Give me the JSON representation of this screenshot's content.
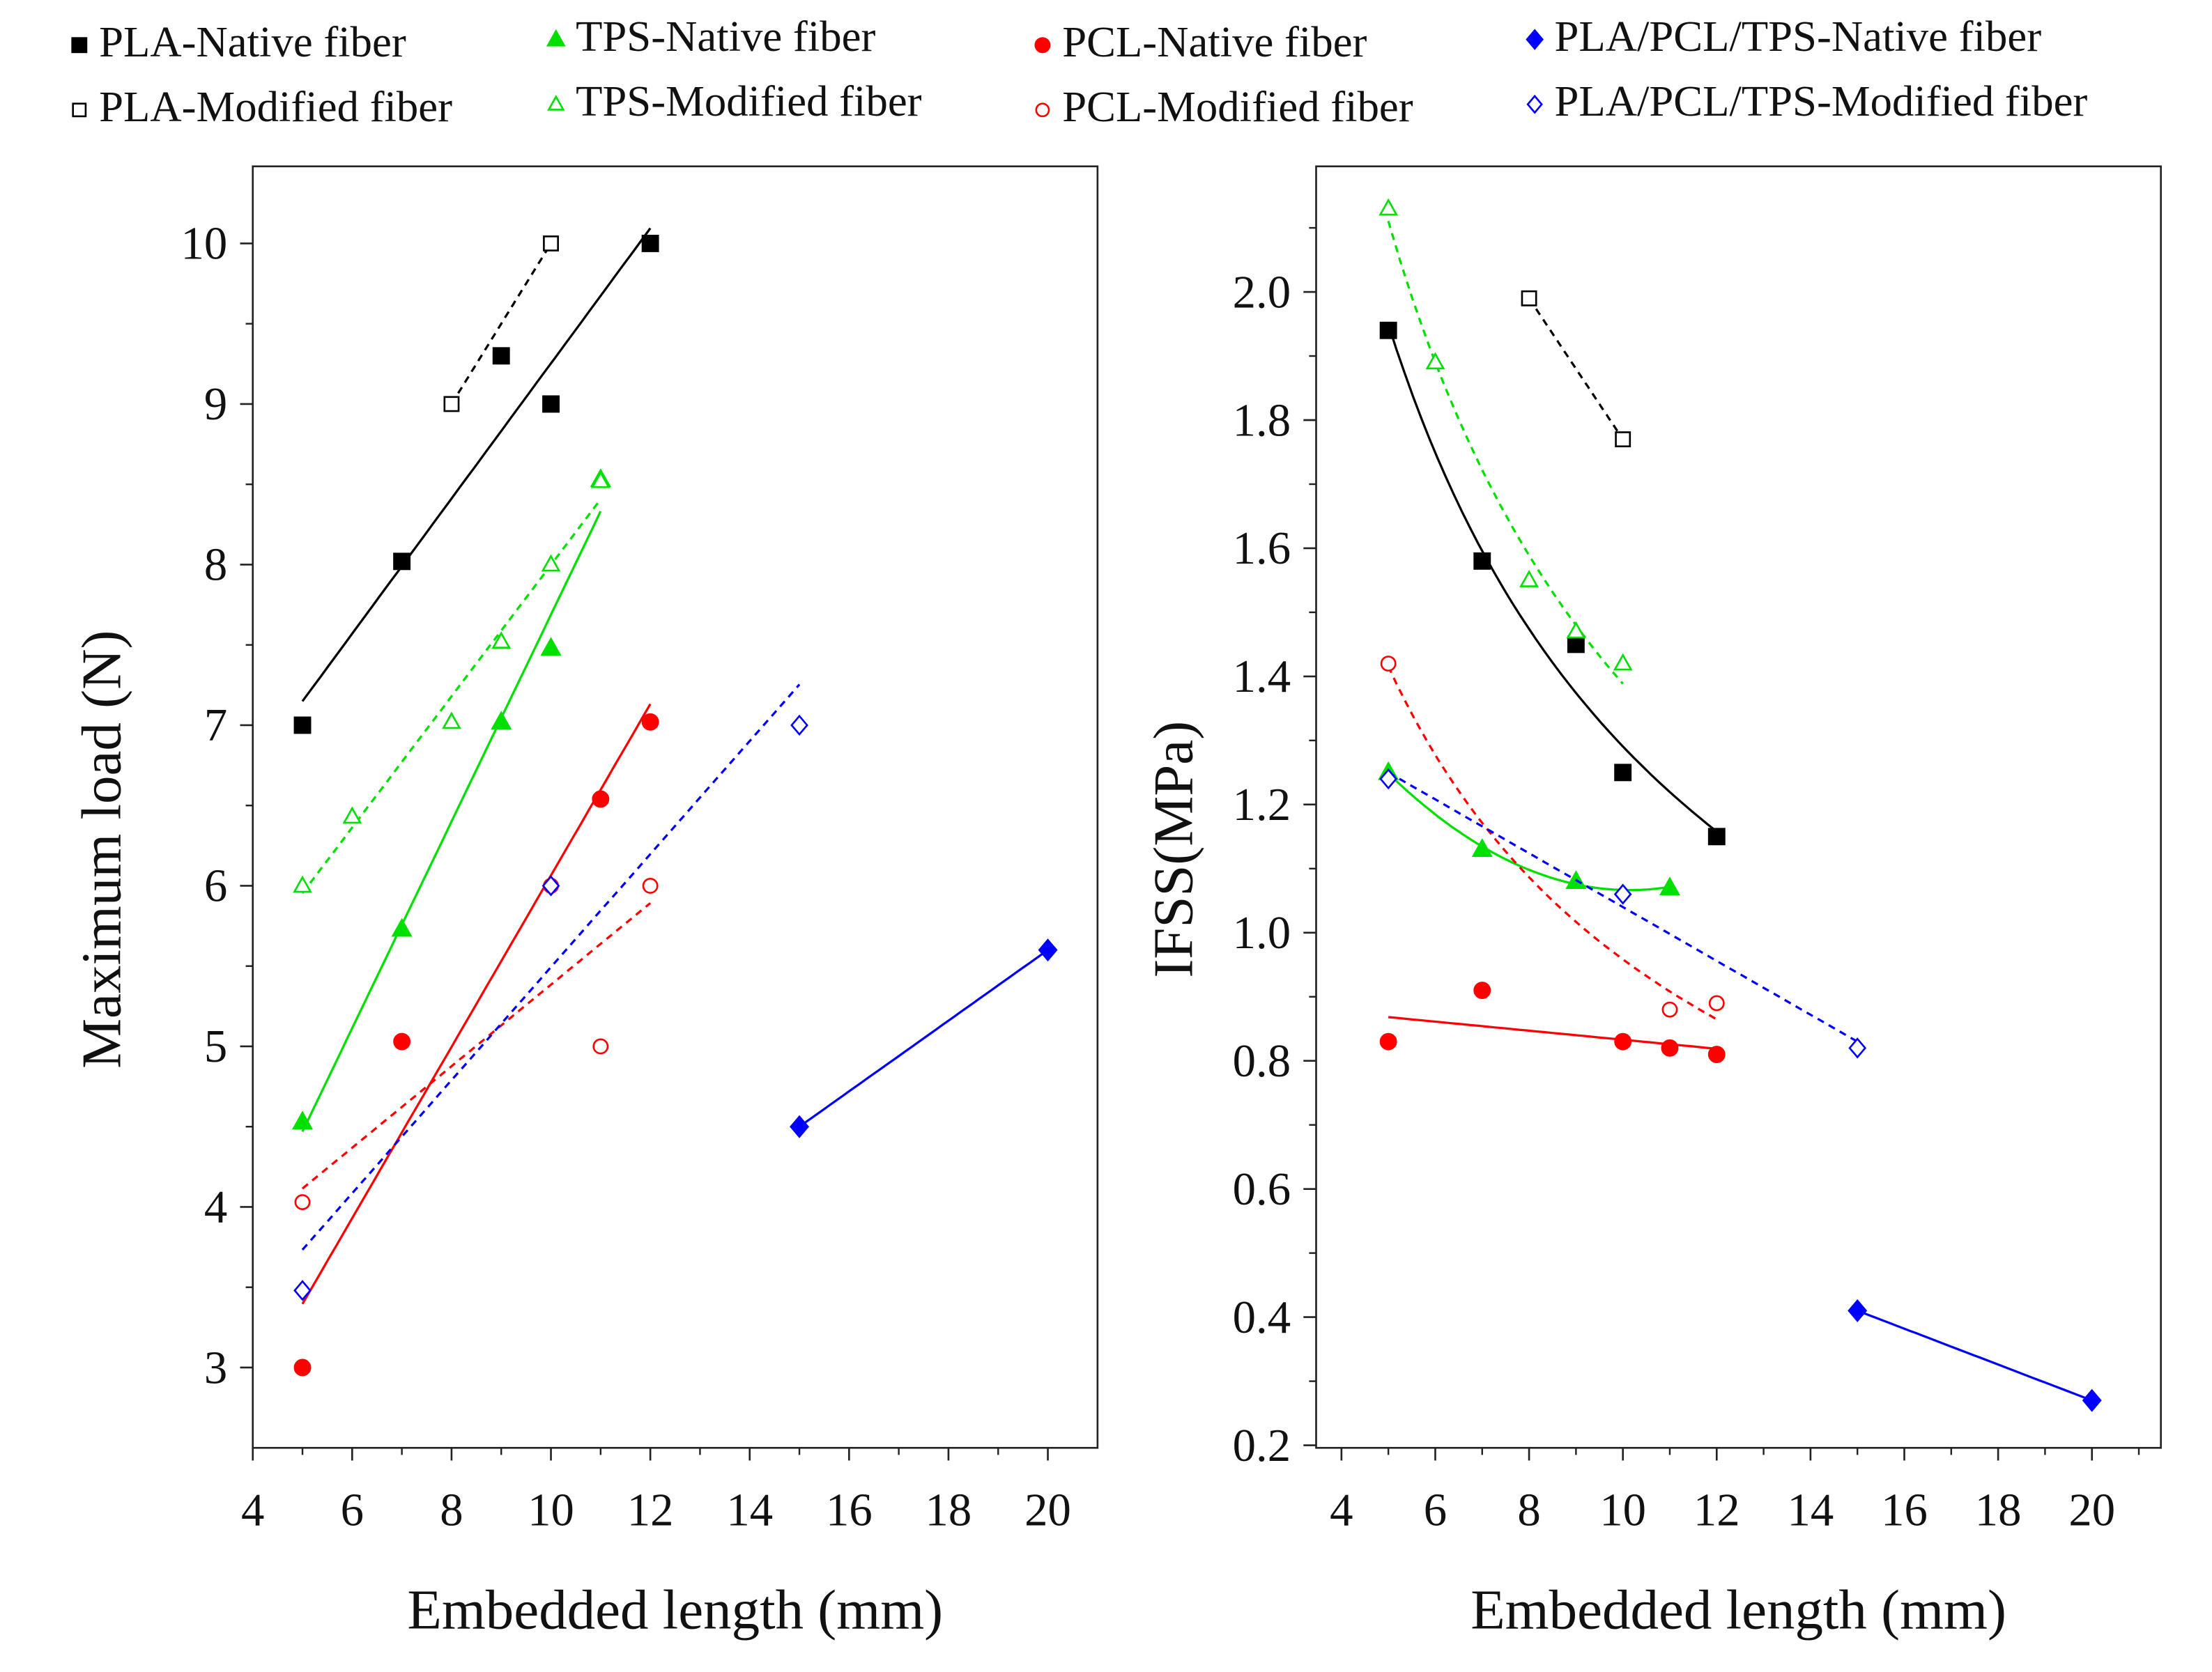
{
  "legend": [
    {
      "label": "PLA-Native fiber",
      "color": "#000000",
      "marker": "square",
      "filled": true
    },
    {
      "label": "TPS-Native fiber",
      "color": "#00e000",
      "marker": "triangle",
      "filled": true
    },
    {
      "label": "PCL-Native fiber",
      "color": "#ff0000",
      "marker": "circle",
      "filled": true
    },
    {
      "label": "PLA/PCL/TPS-Native fiber",
      "color": "#0000ff",
      "marker": "diamond",
      "filled": true
    },
    {
      "label": "PLA-Modified fiber",
      "color": "#000000",
      "marker": "square",
      "filled": false
    },
    {
      "label": "TPS-Modified fiber",
      "color": "#00e000",
      "marker": "triangle",
      "filled": false
    },
    {
      "label": "PCL-Modified fiber",
      "color": "#ff0000",
      "marker": "circle",
      "filled": false
    },
    {
      "label": "PLA/PCL/TPS-Modified fiber",
      "color": "#0000ff",
      "marker": "diamond",
      "filled": false
    }
  ],
  "chart_data": [
    {
      "type": "scatter",
      "title": "",
      "xlabel": "Embedded length (mm)",
      "ylabel": "Maximum load (N)",
      "xlim": [
        4,
        21
      ],
      "ylim": [
        2.5,
        10.48
      ],
      "xticks": [
        4,
        6,
        8,
        10,
        12,
        14,
        16,
        18,
        20
      ],
      "yticks": [
        3,
        4,
        5,
        6,
        7,
        8,
        9,
        10
      ],
      "ytick_decimals": 0,
      "series": [
        {
          "name": "PLA-Native fiber",
          "fit": "linear",
          "x": [
            5,
            7,
            9,
            10,
            12
          ],
          "y": [
            7.0,
            8.02,
            9.3,
            9.0,
            10.0
          ]
        },
        {
          "name": "PLA-Modified fiber",
          "fit": "linear",
          "x": [
            8,
            10
          ],
          "y": [
            9.0,
            10.0
          ]
        },
        {
          "name": "TPS-Native fiber",
          "fit": "linear",
          "x": [
            5,
            7,
            9,
            10,
            11
          ],
          "y": [
            4.53,
            5.73,
            7.02,
            7.48,
            8.53
          ]
        },
        {
          "name": "TPS-Modified fiber",
          "fit": "linear",
          "x": [
            5,
            6,
            8,
            9,
            10,
            11
          ],
          "y": [
            6.0,
            6.43,
            7.02,
            7.52,
            8.0,
            8.52
          ]
        },
        {
          "name": "PCL-Native fiber",
          "fit": "linear",
          "x": [
            5,
            7,
            11,
            12
          ],
          "y": [
            3.0,
            5.03,
            6.54,
            7.02
          ]
        },
        {
          "name": "PCL-Modified fiber",
          "fit": "linear",
          "x": [
            5,
            10,
            11,
            12
          ],
          "y": [
            4.03,
            6.0,
            5.0,
            6.0
          ]
        },
        {
          "name": "PLA/PCL/TPS-Native fiber",
          "fit": "linear",
          "x": [
            15,
            20
          ],
          "y": [
            4.5,
            5.6
          ]
        },
        {
          "name": "PLA/PCL/TPS-Modified fiber",
          "fit": "linear",
          "x": [
            5,
            10,
            15
          ],
          "y": [
            3.48,
            6.0,
            7.0
          ]
        }
      ]
    },
    {
      "type": "scatter",
      "title": "",
      "xlabel": "Embedded length (mm)",
      "ylabel": "IFSS(MPa)",
      "xlim": [
        3.46,
        21.47
      ],
      "ylim": [
        0.196,
        2.196
      ],
      "xticks": [
        4,
        6,
        8,
        10,
        12,
        14,
        16,
        18,
        20
      ],
      "yticks": [
        0.2,
        0.4,
        0.6,
        0.8,
        1.0,
        1.2,
        1.4,
        1.6,
        1.8,
        2.0
      ],
      "ytick_decimals": 1,
      "series": [
        {
          "name": "PLA-Native fiber",
          "fit": "power",
          "x": [
            5,
            7,
            9,
            10,
            12
          ],
          "y": [
            1.94,
            1.58,
            1.45,
            1.25,
            1.15
          ]
        },
        {
          "name": "PLA-Modified fiber",
          "fit": "linear",
          "x": [
            8,
            10
          ],
          "y": [
            1.99,
            1.77
          ]
        },
        {
          "name": "TPS-Native fiber",
          "fit": "quadratic",
          "x": [
            5,
            7,
            9,
            11
          ],
          "y": [
            1.25,
            1.13,
            1.08,
            1.07
          ]
        },
        {
          "name": "TPS-Modified fiber",
          "fit": "power",
          "x": [
            5,
            6,
            8,
            9,
            10
          ],
          "y": [
            2.13,
            1.89,
            1.55,
            1.47,
            1.42
          ]
        },
        {
          "name": "PCL-Native fiber",
          "fit": "linear",
          "x": [
            5,
            7,
            10,
            11,
            12
          ],
          "y": [
            0.83,
            0.91,
            0.83,
            0.82,
            0.81
          ]
        },
        {
          "name": "PCL-Modified fiber",
          "fit": "power",
          "x": [
            5,
            11,
            12
          ],
          "y": [
            1.42,
            0.88,
            0.89
          ]
        },
        {
          "name": "PLA/PCL/TPS-Native fiber",
          "fit": "linear",
          "x": [
            15,
            20
          ],
          "y": [
            0.41,
            0.27
          ]
        },
        {
          "name": "PLA/PCL/TPS-Modified fiber",
          "fit": "linear",
          "x": [
            5,
            10,
            15
          ],
          "y": [
            1.24,
            1.06,
            0.82
          ]
        }
      ]
    }
  ]
}
